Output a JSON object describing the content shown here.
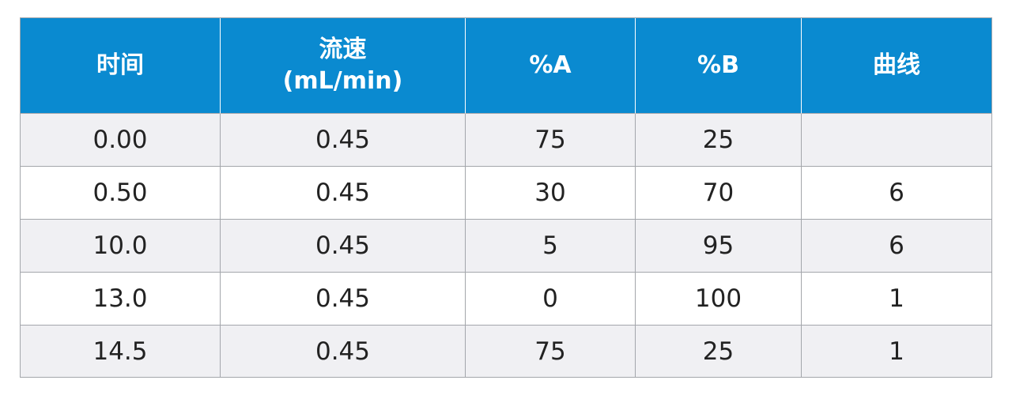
{
  "table": {
    "header": [
      "时间",
      "流速\n(mL/min)",
      "%A",
      "%B",
      "曲线"
    ],
    "rows": [
      [
        "0.00",
        "0.45",
        "75",
        "25",
        null
      ],
      [
        "0.50",
        "0.45",
        "30",
        "70",
        "6"
      ],
      [
        "10.0",
        "0.45",
        "5",
        "95",
        "6"
      ],
      [
        "13.0",
        "0.45",
        "0",
        "100",
        "1"
      ],
      [
        "14.5",
        "0.45",
        "75",
        "25",
        "1"
      ]
    ]
  }
}
